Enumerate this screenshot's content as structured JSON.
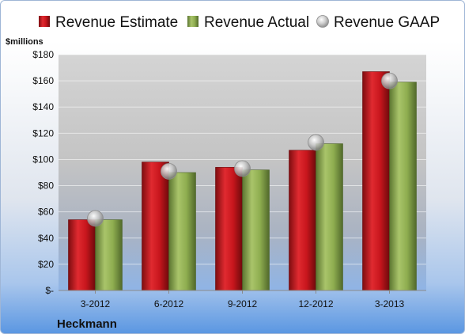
{
  "chart_data": {
    "type": "bar",
    "categories": [
      "3-2012",
      "6-2012",
      "9-2012",
      "12-2012",
      "3-2013"
    ],
    "series": [
      {
        "name": "Revenue Estimate",
        "kind": "bar",
        "color": "#c8161d",
        "values": [
          54,
          98,
          94,
          107,
          167
        ]
      },
      {
        "name": "Revenue Actual",
        "kind": "bar",
        "color": "#8fae50",
        "values": [
          54,
          90,
          92,
          112,
          159
        ]
      },
      {
        "name": "Revenue GAAP",
        "kind": "marker",
        "color": "#b8b8b8",
        "values": [
          55,
          91,
          93,
          113,
          160
        ]
      }
    ],
    "ylabel": "$millions",
    "ylim": [
      0,
      180
    ],
    "yticks": [
      0,
      20,
      40,
      60,
      80,
      100,
      120,
      140,
      160,
      180
    ],
    "ytick_labels": [
      "$-",
      "$20",
      "$40",
      "$60",
      "$80",
      "$100",
      "$120",
      "$140",
      "$160",
      "$180"
    ],
    "grid": true,
    "legend_position": "top"
  },
  "company": "Heckmann"
}
